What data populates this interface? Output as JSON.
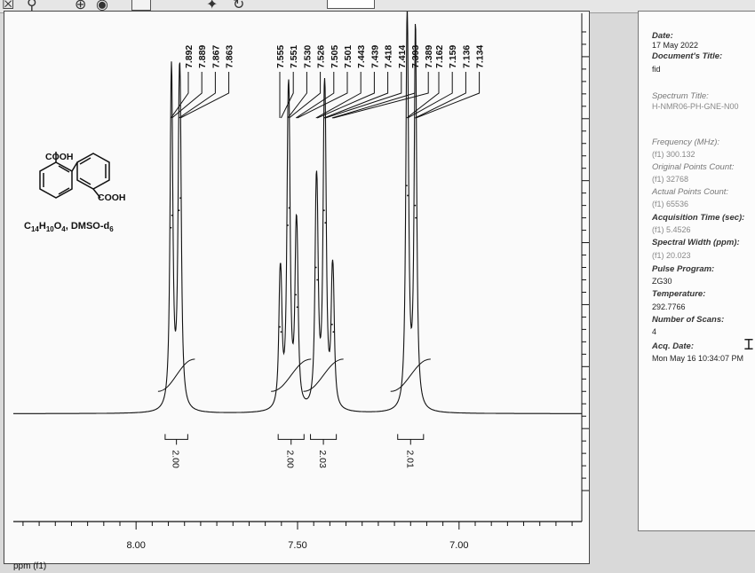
{
  "toolbar": {
    "icons": [
      "close-box-icon",
      "zoom-icon",
      "zoom-in-icon",
      "record-icon",
      "page-icon",
      "pin-icon",
      "rotate-icon"
    ]
  },
  "chart_data": {
    "type": "line",
    "title": "",
    "xlabel": "ppm (f1)",
    "ylabel": "",
    "x_reversed": true,
    "xlim": [
      8.38,
      6.62
    ],
    "ylim": [
      -750,
      3350
    ],
    "x_ticks": [
      8.0,
      7.5,
      7.0
    ],
    "x_tick_labels": [
      "8.00",
      "7.50",
      "7.00"
    ],
    "y_ticks": [
      0,
      500,
      1000,
      1500,
      2000,
      2500,
      3000
    ],
    "y_tick_labels": [
      "0",
      "500",
      "1000",
      "1500",
      "2000",
      "2500",
      "3000"
    ],
    "peak_labels": [
      "7.892",
      "7.889",
      "7.867",
      "7.863",
      "7.555",
      "7.551",
      "7.530",
      "7.526",
      "7.505",
      "7.501",
      "7.443",
      "7.439",
      "7.418",
      "7.414",
      "7.393",
      "7.389",
      "7.162",
      "7.159",
      "7.136",
      "7.134"
    ],
    "series": [
      {
        "values": [
          {
            "x": 7.892,
            "y": 1620
          },
          {
            "x": 7.889,
            "y": 1720
          },
          {
            "x": 7.867,
            "y": 1760
          },
          {
            "x": 7.863,
            "y": 1860
          },
          {
            "x": 7.555,
            "y": 820
          },
          {
            "x": 7.551,
            "y": 780
          },
          {
            "x": 7.53,
            "y": 1640
          },
          {
            "x": 7.526,
            "y": 1780
          },
          {
            "x": 7.505,
            "y": 1080
          },
          {
            "x": 7.501,
            "y": 980
          },
          {
            "x": 7.443,
            "y": 1300
          },
          {
            "x": 7.439,
            "y": 1200
          },
          {
            "x": 7.418,
            "y": 1760
          },
          {
            "x": 7.414,
            "y": 1660
          },
          {
            "x": 7.393,
            "y": 840
          },
          {
            "x": 7.389,
            "y": 780
          },
          {
            "x": 7.162,
            "y": 1960
          },
          {
            "x": 7.159,
            "y": 1880
          },
          {
            "x": 7.136,
            "y": 1800
          },
          {
            "x": 7.134,
            "y": 1700
          }
        ]
      }
    ],
    "integrals": [
      {
        "from": 7.91,
        "to": 7.84,
        "value": "2.00"
      },
      {
        "from": 7.56,
        "to": 7.48,
        "value": "2.00"
      },
      {
        "from": 7.46,
        "to": 7.38,
        "value": "2.03"
      },
      {
        "from": 7.19,
        "to": 7.11,
        "value": "2.01"
      }
    ]
  },
  "compound": {
    "label_top": "COOH",
    "label_bottom": "COOH",
    "formula_c": "C",
    "formula_c_sub": "14",
    "formula_h": "H",
    "formula_h_sub": "10",
    "formula_o": "O",
    "formula_o_sub": "4",
    "formula_solvent": ", DMSO-d",
    "formula_solvent_sub": "6"
  },
  "params": {
    "date_label": "Date:",
    "date_value": "17 May 2022",
    "doc_title_label": "Document's Title:",
    "doc_title_value": "fid",
    "spectrum_title_label": "Spectrum Title:",
    "spectrum_title_value": "H-NMR06-PH-GNE-N00",
    "frequency_label": "Frequency (MHz):",
    "frequency_value": "(f1) 300.132",
    "orig_points_label": "Original Points Count:",
    "orig_points_value": "(f1) 32768",
    "actual_points_label": "Actual Points Count:",
    "actual_points_value": "(f1) 65536",
    "acq_time_label": "Acquisition Time (sec):",
    "acq_time_value": "(f1) 5.4526",
    "spectral_width_label": "Spectral Width (ppm):",
    "spectral_width_value": "(f1) 20.023",
    "pulse_label": "Pulse Program:",
    "pulse_value": "ZG30",
    "temp_label": "Temperature:",
    "temp_value": "292.7766",
    "scans_label": "Number of Scans:",
    "scans_value": "4",
    "acq_date_label": "Acq. Date:",
    "acq_date_value": "Mon May 16 10:34:07 PM"
  },
  "colors": {
    "trace": "#111111",
    "paper": "#fafafa",
    "background": "#d9d9d9"
  }
}
